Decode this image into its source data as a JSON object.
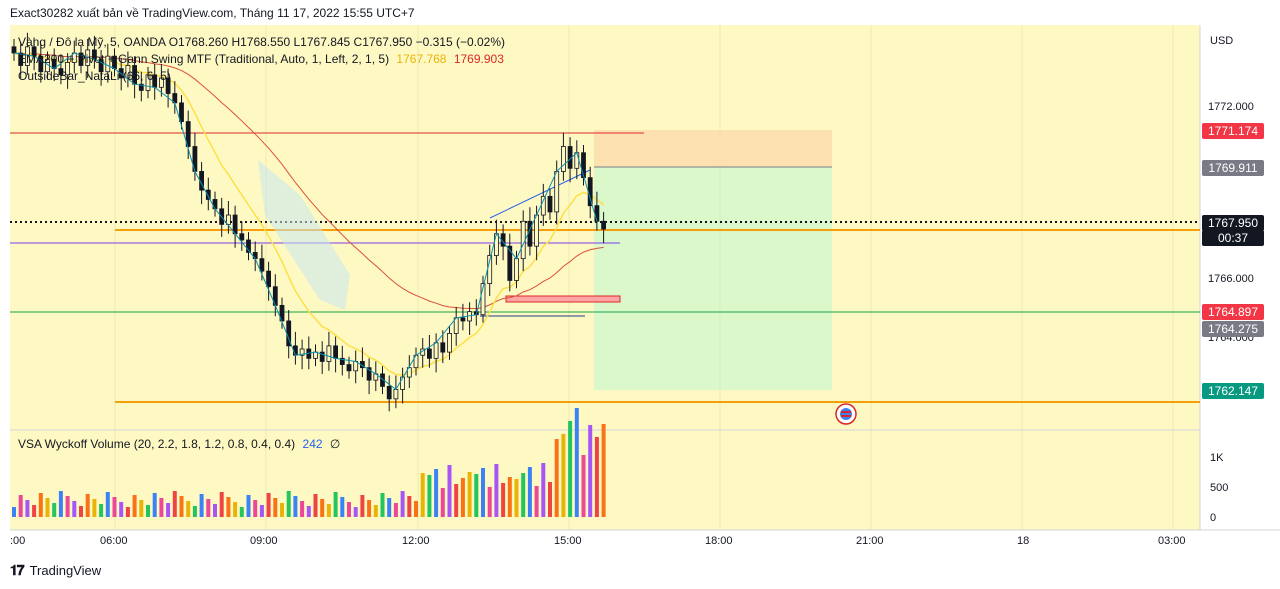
{
  "header": {
    "title": "Exact30282 xuất bản về TradingView.com, Tháng 11 17, 2022 15:55 UTC+7"
  },
  "legend": {
    "line1": "Vàng / Đô la Mỹ, 5, OANDA O1768.260 H1768.550 L1767.845 C1767.950 −0.315 (−0.02%)",
    "line2_prefix": "EMA200 + Pivot + Gann Swing MTF (Traditional, Auto, 1, Left, 2, 1, 5)",
    "line2_val1": "1767.768",
    "line2_val2": "1769.903",
    "line3": "OutsideBar_NataLi (66, 6, 5)",
    "volume_prefix": "VSA Wyckoff Volume (20, 2.2, 1.8, 1.2, 0.8, 0.4, 0.4)",
    "volume_value": "242",
    "volume_suffix": "∅"
  },
  "price_axis": {
    "currency": "USD",
    "ticks": [
      "1772.000",
      "1766.000",
      "1764.000"
    ],
    "tags": [
      {
        "value": "1771.174",
        "color": "#f23645"
      },
      {
        "value": "1769.911",
        "color": "#787b86"
      },
      {
        "value": "1767.950",
        "color": "#131722",
        "sub": "00:37"
      },
      {
        "value": "1764.897",
        "color": "#f23645"
      },
      {
        "value": "1764.275",
        "color": "#787b86"
      },
      {
        "value": "1762.147",
        "color": "#089981"
      }
    ]
  },
  "volume_axis": {
    "ticks": [
      "1K",
      "500",
      "0"
    ]
  },
  "time_axis": {
    "ticks": [
      ":00",
      "06:00",
      "09:00",
      "12:00",
      "15:00",
      "18:00",
      "21:00",
      "18",
      "03:00"
    ]
  },
  "colors": {
    "chart_bg": "#fef9c3",
    "orange_line": "#f59e0b",
    "red_line": "#dc2626",
    "purple_line": "#7c3aed",
    "green_line": "#16a34a",
    "ema_red": "#dc4f3c",
    "ema_yellow": "#fde047",
    "zigzag": "#2563eb"
  },
  "chart_data": {
    "type": "candlestick",
    "symbol": "XAUUSD",
    "interval_minutes": 5,
    "ylim": [
      1761.5,
      1774.5
    ],
    "close_series": [
      1773.6,
      1773.2,
      1773.8,
      1773.5,
      1773.0,
      1773.4,
      1773.1,
      1772.9,
      1773.3,
      1773.6,
      1773.2,
      1773.7,
      1773.4,
      1773.0,
      1773.5,
      1773.1,
      1772.8,
      1773.2,
      1772.6,
      1772.4,
      1772.9,
      1772.5,
      1772.8,
      1772.3,
      1772.0,
      1771.4,
      1770.6,
      1769.8,
      1769.2,
      1768.9,
      1768.6,
      1768.1,
      1768.4,
      1767.8,
      1767.6,
      1767.2,
      1767.0,
      1766.6,
      1766.1,
      1765.5,
      1765.0,
      1764.2,
      1763.9,
      1764.1,
      1763.8,
      1764.0,
      1763.7,
      1764.2,
      1763.8,
      1763.6,
      1763.4,
      1763.7,
      1763.5,
      1763.1,
      1763.3,
      1762.9,
      1762.5,
      1762.8,
      1763.2,
      1763.5,
      1763.9,
      1764.1,
      1763.8,
      1764.3,
      1764.0,
      1764.6,
      1765.1,
      1765.0,
      1765.3,
      1765.2,
      1766.2,
      1767.1,
      1767.8,
      1767.4,
      1766.3,
      1767.0,
      1768.2,
      1767.4,
      1768.4,
      1769.0,
      1768.5,
      1769.8,
      1770.6,
      1769.9,
      1770.4,
      1769.6,
      1768.7,
      1768.2,
      1767.95
    ],
    "volume_ticks": [
      "1K",
      "500",
      "0"
    ]
  }
}
